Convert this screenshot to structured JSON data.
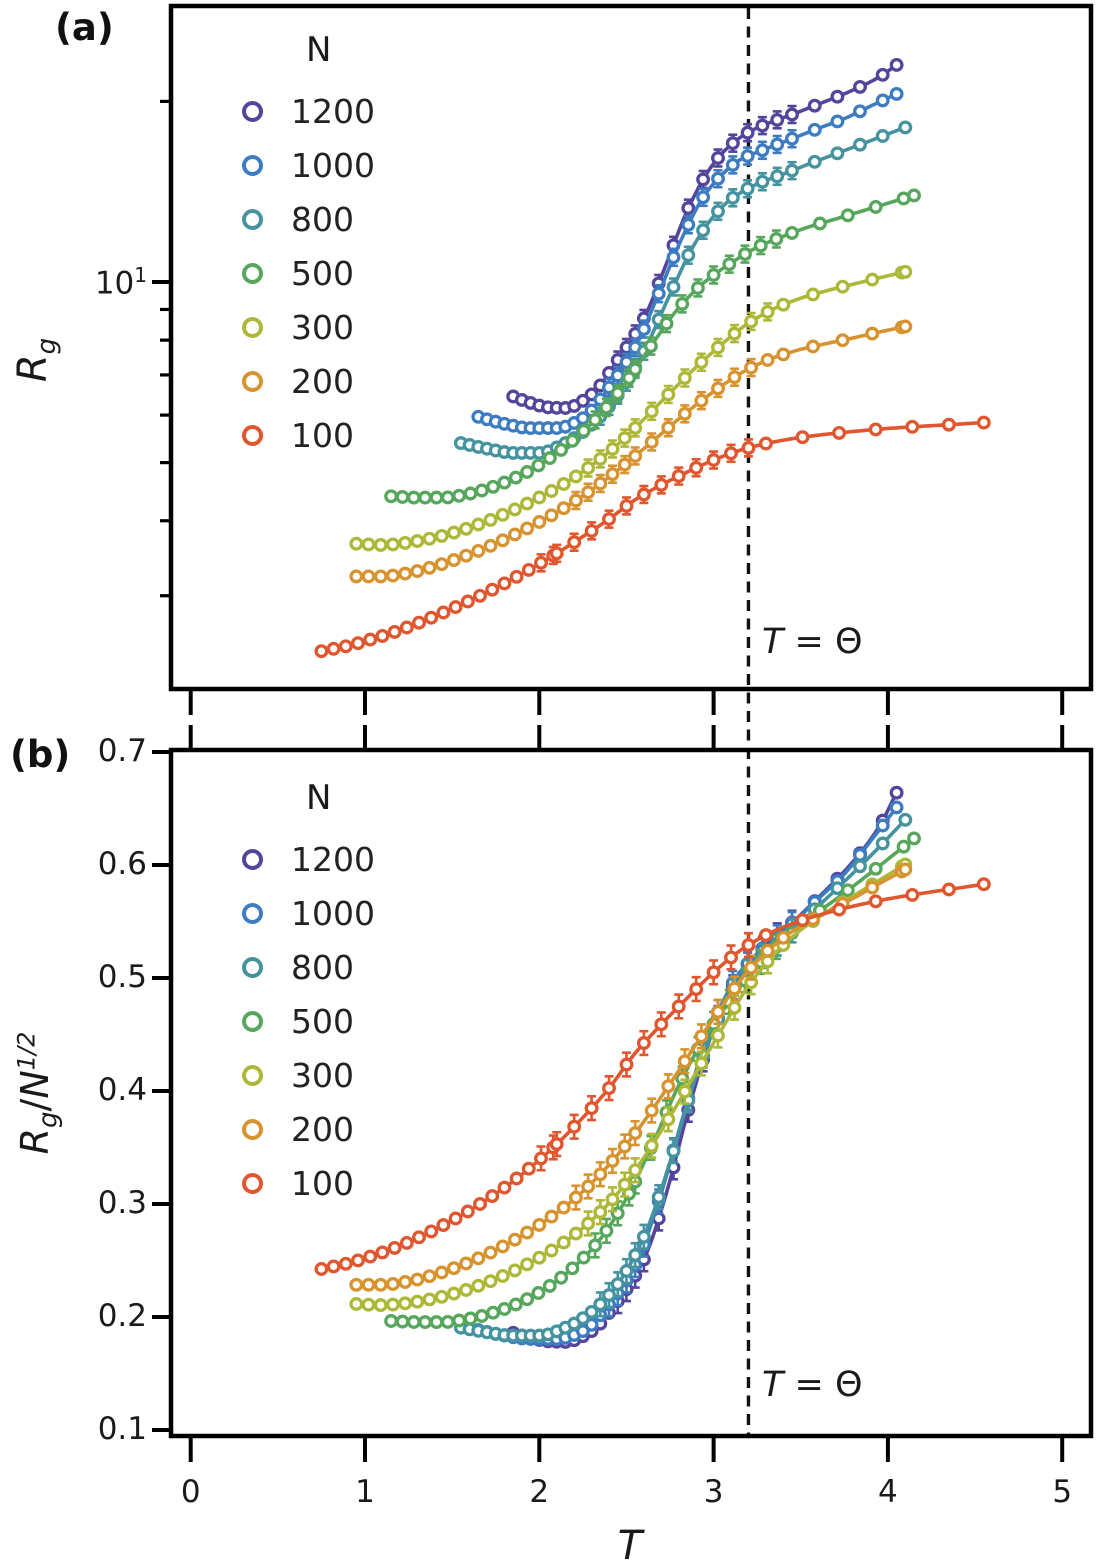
{
  "figure": {
    "background": "#ffffff",
    "panel_a_label": "(a)",
    "panel_b_label": "(b)"
  },
  "axis": {
    "x": {
      "label": "T",
      "tick_labels": [
        "0",
        "1",
        "2",
        "3",
        "4",
        "5"
      ],
      "tick_values": [
        0,
        1,
        2,
        3,
        4,
        5
      ]
    },
    "panel_a_y": {
      "label_r": "R",
      "label_sub": "g",
      "scale": "log",
      "major_tick_base": "10",
      "major_tick_exponent": "1",
      "major_tick_value": 10,
      "minor_tick_values": [
        20,
        9,
        8,
        7,
        6,
        5,
        4,
        3,
        2
      ]
    },
    "panel_b_y": {
      "label_r": "R",
      "label_sub": "g",
      "label_divider": "/",
      "label_n": "N",
      "label_sup": "1/2",
      "scale": "linear",
      "tick_labels": [
        "0.7",
        "0.6",
        "0.5",
        "0.4",
        "0.3",
        "0.2",
        "0.1"
      ],
      "tick_values": [
        0.7,
        0.6,
        0.5,
        0.4,
        0.3,
        0.2,
        0.1
      ]
    }
  },
  "annotations": {
    "theta_t": "T",
    "theta_eq": " = ",
    "theta_symbol": "Θ",
    "theta_T_value": 3.2
  },
  "legend": {
    "title": "N",
    "entries": [
      "1200",
      "1000",
      "800",
      "500",
      "300",
      "200",
      "100"
    ]
  },
  "chart_data": {
    "type": "line",
    "xlabel": "T",
    "xlim": [
      -0.15,
      5.2
    ],
    "theta_line_T": 3.2,
    "panels": [
      {
        "id": "a",
        "ylabel": "Rg",
        "yscale": "log",
        "note": "Rg = ratio * sqrt(N)"
      },
      {
        "id": "b",
        "ylabel": "Rg/N^1/2",
        "yscale": "linear",
        "ylim": [
          0.1,
          0.7
        ]
      }
    ],
    "series": [
      {
        "name": "1200",
        "n": 1200,
        "color": "#54459c",
        "marker": "open-circle",
        "points_T_ratio": [
          [
            1.85,
            0.186
          ],
          [
            1.95,
            0.1815
          ],
          [
            2.05,
            0.1785
          ],
          [
            2.15,
            0.178
          ],
          [
            2.3,
            0.1875
          ],
          [
            2.45,
            0.214
          ],
          [
            2.6,
            0.251
          ],
          [
            2.73,
            0.31
          ],
          [
            2.86,
            0.386
          ],
          [
            3.0,
            0.455
          ],
          [
            3.1,
            0.489
          ],
          [
            3.2,
            0.513
          ],
          [
            3.3,
            0.529
          ],
          [
            3.45,
            0.549
          ],
          [
            3.6,
            0.571
          ],
          [
            3.8,
            0.603
          ],
          [
            3.95,
            0.634
          ],
          [
            4.05,
            0.664
          ]
        ]
      },
      {
        "name": "1000",
        "n": 1000,
        "color": "#3e7cc2",
        "marker": "open-circle",
        "points_T_ratio": [
          [
            1.65,
            0.1885
          ],
          [
            1.8,
            0.1835
          ],
          [
            1.95,
            0.1805
          ],
          [
            2.1,
            0.1805
          ],
          [
            2.25,
            0.1875
          ],
          [
            2.4,
            0.211
          ],
          [
            2.55,
            0.246
          ],
          [
            2.68,
            0.3
          ],
          [
            2.82,
            0.375
          ],
          [
            2.95,
            0.442
          ],
          [
            3.05,
            0.478
          ],
          [
            3.15,
            0.505
          ],
          [
            3.3,
            0.527
          ],
          [
            3.45,
            0.548
          ],
          [
            3.6,
            0.57
          ],
          [
            3.75,
            0.592
          ],
          [
            3.9,
            0.621
          ],
          [
            4.05,
            0.651
          ]
        ]
      },
      {
        "name": "800",
        "n": 800,
        "color": "#45939f",
        "marker": "open-circle",
        "points_T_ratio": [
          [
            1.55,
            0.1905
          ],
          [
            1.7,
            0.1865
          ],
          [
            1.85,
            0.1835
          ],
          [
            2.0,
            0.1835
          ],
          [
            2.15,
            0.1905
          ],
          [
            2.3,
            0.2045
          ],
          [
            2.45,
            0.229
          ],
          [
            2.6,
            0.271
          ],
          [
            2.75,
            0.337
          ],
          [
            2.88,
            0.404
          ],
          [
            3.0,
            0.455
          ],
          [
            3.1,
            0.486
          ],
          [
            3.25,
            0.515
          ],
          [
            3.4,
            0.535
          ],
          [
            3.55,
            0.5565
          ],
          [
            3.7,
            0.578
          ],
          [
            3.9,
            0.608
          ],
          [
            4.1,
            0.64
          ]
        ]
      },
      {
        "name": "500",
        "n": 500,
        "color": "#56a65b",
        "marker": "open-circle",
        "points_T_ratio": [
          [
            1.15,
            0.1965
          ],
          [
            1.3,
            0.1955
          ],
          [
            1.45,
            0.1955
          ],
          [
            1.6,
            0.1985
          ],
          [
            1.75,
            0.2045
          ],
          [
            1.9,
            0.2135
          ],
          [
            2.05,
            0.2265
          ],
          [
            2.2,
            0.2445
          ],
          [
            2.35,
            0.269
          ],
          [
            2.5,
            0.305
          ],
          [
            2.65,
            0.353
          ],
          [
            2.8,
            0.405
          ],
          [
            2.95,
            0.4475
          ],
          [
            3.1,
            0.481
          ],
          [
            3.25,
            0.511
          ],
          [
            3.4,
            0.533
          ],
          [
            3.55,
            0.553
          ],
          [
            3.7,
            0.5695
          ],
          [
            3.9,
            0.593
          ],
          [
            4.15,
            0.6235
          ]
        ]
      },
      {
        "name": "300",
        "n": 300,
        "color": "#aeb838",
        "marker": "open-circle",
        "points_T_ratio": [
          [
            0.95,
            0.2115
          ],
          [
            1.1,
            0.2105
          ],
          [
            1.25,
            0.2125
          ],
          [
            1.4,
            0.2165
          ],
          [
            1.55,
            0.2225
          ],
          [
            1.7,
            0.2305
          ],
          [
            1.85,
            0.2405
          ],
          [
            2.0,
            0.2525
          ],
          [
            2.15,
            0.267
          ],
          [
            2.3,
            0.2855
          ],
          [
            2.45,
            0.3095
          ],
          [
            2.6,
            0.341
          ],
          [
            2.75,
            0.3775
          ],
          [
            2.9,
            0.4165
          ],
          [
            3.05,
            0.4555
          ],
          [
            3.2,
            0.493
          ],
          [
            3.35,
            0.5215
          ],
          [
            3.5,
            0.5425
          ],
          [
            3.65,
            0.5585
          ],
          [
            3.8,
            0.5725
          ],
          [
            3.95,
            0.5865
          ],
          [
            4.1,
            0.6005
          ]
        ]
      },
      {
        "name": "200",
        "n": 200,
        "color": "#d79330",
        "marker": "open-circle",
        "points_T_ratio": [
          [
            0.95,
            0.2285
          ],
          [
            1.1,
            0.2285
          ],
          [
            1.25,
            0.2315
          ],
          [
            1.4,
            0.2375
          ],
          [
            1.55,
            0.2455
          ],
          [
            1.7,
            0.2555
          ],
          [
            1.85,
            0.2675
          ],
          [
            2.0,
            0.2815
          ],
          [
            2.15,
            0.298
          ],
          [
            2.3,
            0.3185
          ],
          [
            2.45,
            0.3435
          ],
          [
            2.6,
            0.373
          ],
          [
            2.75,
            0.4065
          ],
          [
            2.9,
            0.4415
          ],
          [
            3.05,
            0.4755
          ],
          [
            3.2,
            0.5065
          ],
          [
            3.35,
            0.5295
          ],
          [
            3.5,
            0.546
          ],
          [
            3.65,
            0.5585
          ],
          [
            3.8,
            0.5705
          ],
          [
            3.95,
            0.5835
          ],
          [
            4.1,
            0.596
          ]
        ]
      },
      {
        "name": "100",
        "n": 100,
        "color": "#e0562e",
        "marker": "open-circle",
        "points_T_ratio": [
          [
            0.75,
            0.2425
          ],
          [
            0.9,
            0.2475
          ],
          [
            1.05,
            0.2545
          ],
          [
            1.2,
            0.263
          ],
          [
            1.35,
            0.2735
          ],
          [
            1.5,
            0.2855
          ],
          [
            1.65,
            0.299
          ],
          [
            1.8,
            0.3145
          ],
          [
            1.95,
            0.3325
          ],
          [
            2.1,
            0.353
          ],
          [
            2.25,
            0.3765
          ],
          [
            2.4,
            0.4025
          ],
          [
            2.55,
            0.4335
          ],
          [
            2.7,
            0.459
          ],
          [
            2.85,
            0.4825
          ],
          [
            3.0,
            0.505
          ],
          [
            3.15,
            0.524
          ],
          [
            3.3,
            0.538
          ],
          [
            3.45,
            0.548
          ],
          [
            3.6,
            0.5555
          ],
          [
            3.8,
            0.5635
          ],
          [
            4.0,
            0.57
          ],
          [
            4.2,
            0.575
          ],
          [
            4.4,
            0.5795
          ],
          [
            4.55,
            0.583
          ]
        ]
      }
    ]
  }
}
